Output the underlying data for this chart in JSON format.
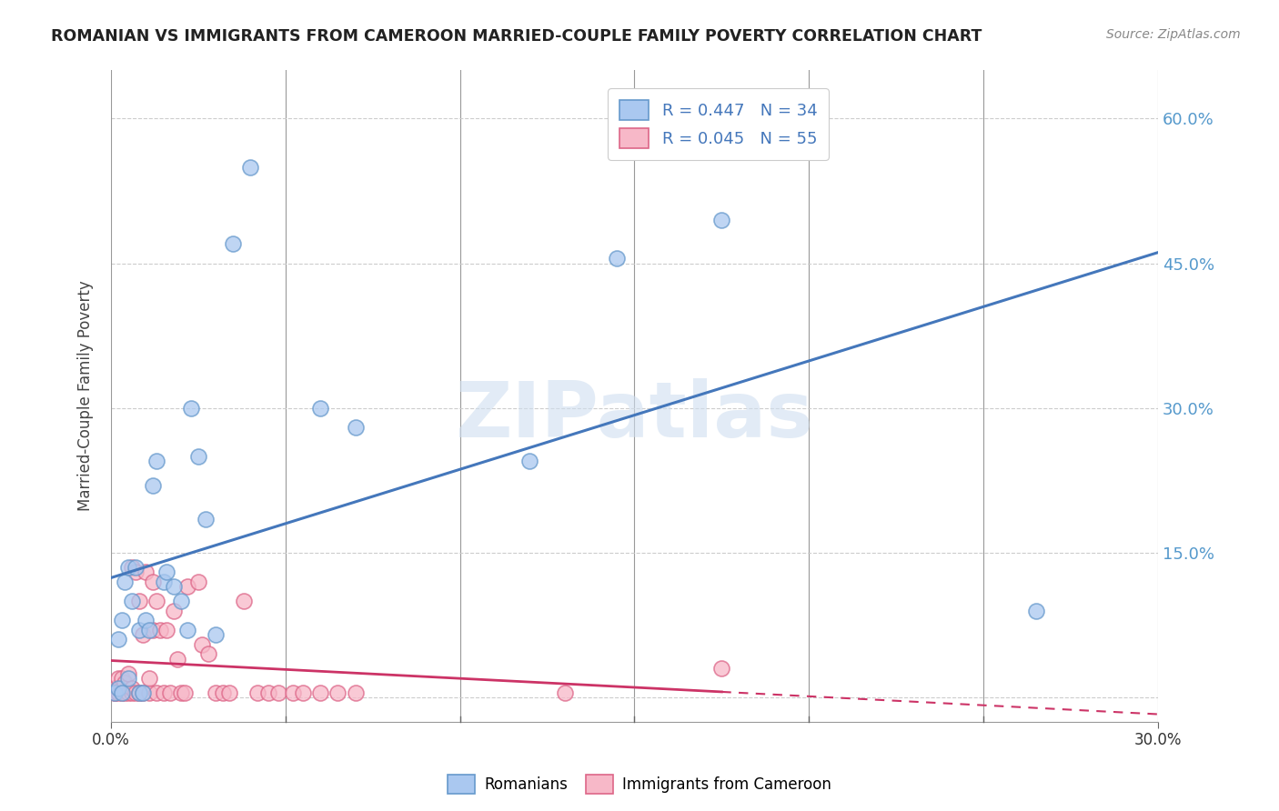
{
  "title": "ROMANIAN VS IMMIGRANTS FROM CAMEROON MARRIED-COUPLE FAMILY POVERTY CORRELATION CHART",
  "source": "Source: ZipAtlas.com",
  "ylabel": "Married-Couple Family Poverty",
  "yticks": [
    0.0,
    0.15,
    0.3,
    0.45,
    0.6
  ],
  "ytick_labels": [
    "",
    "15.0%",
    "30.0%",
    "45.0%",
    "60.0%"
  ],
  "xlim": [
    0.0,
    0.3
  ],
  "ylim": [
    -0.025,
    0.65
  ],
  "blue_color": "#aac8f0",
  "pink_color": "#f7b8c8",
  "blue_edge_color": "#6699cc",
  "pink_edge_color": "#dd6688",
  "blue_line_color": "#4477bb",
  "pink_line_color": "#cc3366",
  "background_color": "#ffffff",
  "watermark_text": "ZIPatlas",
  "romanians_x": [
    0.001,
    0.002,
    0.002,
    0.003,
    0.003,
    0.004,
    0.005,
    0.005,
    0.006,
    0.007,
    0.008,
    0.008,
    0.009,
    0.01,
    0.011,
    0.012,
    0.013,
    0.015,
    0.016,
    0.018,
    0.02,
    0.022,
    0.023,
    0.025,
    0.027,
    0.03,
    0.035,
    0.04,
    0.06,
    0.07,
    0.12,
    0.145,
    0.175,
    0.265
  ],
  "romanians_y": [
    0.005,
    0.01,
    0.06,
    0.005,
    0.08,
    0.12,
    0.135,
    0.02,
    0.1,
    0.135,
    0.07,
    0.005,
    0.005,
    0.08,
    0.07,
    0.22,
    0.245,
    0.12,
    0.13,
    0.115,
    0.1,
    0.07,
    0.3,
    0.25,
    0.185,
    0.065,
    0.47,
    0.55,
    0.3,
    0.28,
    0.245,
    0.455,
    0.495,
    0.09
  ],
  "cameroon_x": [
    0.001,
    0.001,
    0.001,
    0.002,
    0.002,
    0.002,
    0.003,
    0.003,
    0.003,
    0.004,
    0.004,
    0.005,
    0.005,
    0.006,
    0.006,
    0.006,
    0.007,
    0.007,
    0.008,
    0.008,
    0.009,
    0.009,
    0.01,
    0.011,
    0.011,
    0.012,
    0.012,
    0.013,
    0.013,
    0.014,
    0.015,
    0.016,
    0.017,
    0.018,
    0.019,
    0.02,
    0.021,
    0.022,
    0.025,
    0.026,
    0.028,
    0.03,
    0.032,
    0.034,
    0.038,
    0.042,
    0.045,
    0.048,
    0.052,
    0.055,
    0.06,
    0.065,
    0.07,
    0.13,
    0.175
  ],
  "cameroon_y": [
    0.005,
    0.01,
    0.005,
    0.005,
    0.01,
    0.02,
    0.005,
    0.01,
    0.02,
    0.005,
    0.015,
    0.005,
    0.025,
    0.005,
    0.01,
    0.135,
    0.005,
    0.13,
    0.005,
    0.1,
    0.005,
    0.065,
    0.13,
    0.005,
    0.02,
    0.12,
    0.07,
    0.005,
    0.1,
    0.07,
    0.005,
    0.07,
    0.005,
    0.09,
    0.04,
    0.005,
    0.005,
    0.115,
    0.12,
    0.055,
    0.045,
    0.005,
    0.005,
    0.005,
    0.1,
    0.005,
    0.005,
    0.005,
    0.005,
    0.005,
    0.005,
    0.005,
    0.005,
    0.005,
    0.03
  ],
  "xtick_minor_positions": [
    0.05,
    0.1,
    0.15,
    0.2,
    0.25
  ],
  "xtick_label_left": "0.0%",
  "xtick_label_right": "30.0%"
}
